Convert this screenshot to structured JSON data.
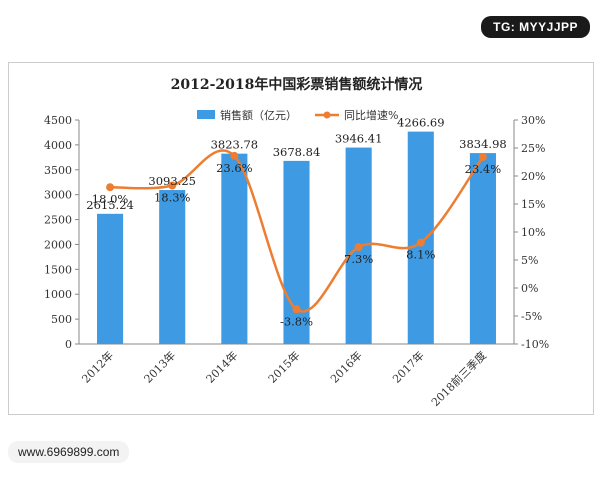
{
  "badges": {
    "top": "TG: MYYJJPP",
    "bottom": "www.6969899.com"
  },
  "colors": {
    "bar": "#3E9BE3",
    "line": "#ED7D31",
    "axis_text": "#333333",
    "grid": "#d9d9d9"
  },
  "chart_data": {
    "type": "bar",
    "title": "2012-2018年中国彩票销售额统计情况",
    "categories": [
      "2012年",
      "2013年",
      "2014年",
      "2015年",
      "2016年",
      "2017年",
      "2018前三季度"
    ],
    "series": [
      {
        "name": "销售额（亿元）",
        "type": "bar",
        "axis": "left",
        "values": [
          2615.24,
          3093.25,
          3823.78,
          3678.84,
          3946.41,
          4266.69,
          3834.98
        ],
        "labels": [
          "2615.24",
          "3093.25",
          "3823.78",
          "3678.84",
          "3946.41",
          "4266.69",
          "3834.98"
        ]
      },
      {
        "name": "同比增速%",
        "type": "line",
        "axis": "right",
        "values": [
          18.0,
          18.3,
          23.6,
          -3.8,
          7.3,
          8.1,
          23.4
        ],
        "labels": [
          "18.0%",
          "18.3%",
          "23.6%",
          "-3.8%",
          "7.3%",
          "8.1%",
          "23.4%"
        ]
      }
    ],
    "ylim_left": [
      0,
      4500
    ],
    "yticks_left": [
      "0",
      "500",
      "1000",
      "1500",
      "2000",
      "2500",
      "3000",
      "3500",
      "4000",
      "4500"
    ],
    "ylim_right": [
      -10,
      30
    ],
    "yticks_right": [
      "-10%",
      "-5%",
      "0%",
      "5%",
      "10%",
      "15%",
      "20%",
      "25%",
      "30%"
    ],
    "legend_position": "top",
    "grid": false
  }
}
